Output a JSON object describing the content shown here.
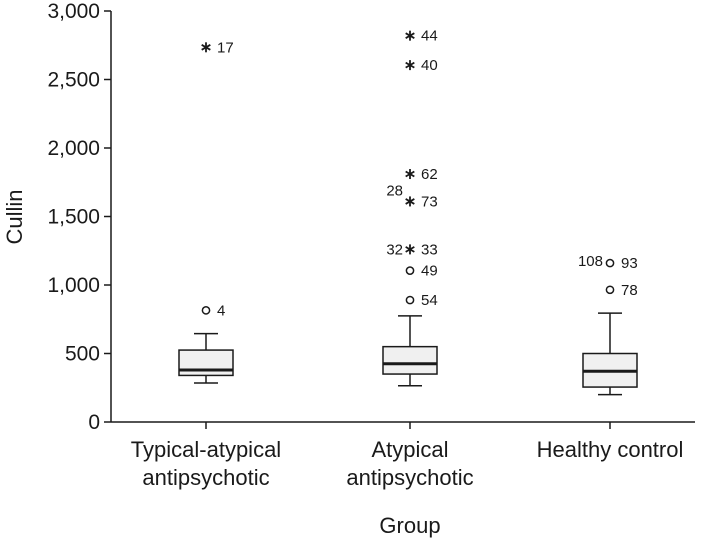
{
  "chart_data": {
    "type": "box",
    "xlabel": "Group",
    "ylabel": "Cullin",
    "ylim": [
      0,
      3000
    ],
    "yticks": [
      {
        "value": 0,
        "label": "0"
      },
      {
        "value": 500,
        "label": "500"
      },
      {
        "value": 1000,
        "label": "1,000"
      },
      {
        "value": 1500,
        "label": "1,500"
      },
      {
        "value": 2000,
        "label": "2,000"
      },
      {
        "value": 2500,
        "label": "2,500"
      },
      {
        "value": 3000,
        "label": "3,000"
      }
    ],
    "grid": false,
    "groups": [
      {
        "category": [
          "Typical-atypical",
          "antipsychotic"
        ],
        "whisker_low": 285,
        "q1": 340,
        "median": 380,
        "q3": 525,
        "whisker_high": 645,
        "outliers": [
          {
            "value": 815,
            "label": "4",
            "marker": "circle",
            "side": "right"
          },
          {
            "value": 2735,
            "label": "17",
            "marker": "star",
            "side": "right"
          }
        ]
      },
      {
        "category": [
          "Atypical",
          "antipsychotic"
        ],
        "whisker_low": 265,
        "q1": 350,
        "median": 425,
        "q3": 550,
        "whisker_high": 775,
        "outliers": [
          {
            "value": 890,
            "label": "54",
            "marker": "circle",
            "side": "right"
          },
          {
            "value": 1105,
            "label": "49",
            "marker": "circle",
            "side": "right"
          },
          {
            "value": 1260,
            "label": "33",
            "marker": "star",
            "side": "right"
          },
          {
            "value": 1260,
            "label": "32",
            "marker": "star",
            "side": "left"
          },
          {
            "value": 1610,
            "label": "73",
            "marker": "star",
            "side": "right"
          },
          {
            "value": 1690,
            "label": "28",
            "marker": "star",
            "side": "left"
          },
          {
            "value": 1810,
            "label": "62",
            "marker": "star",
            "side": "right"
          },
          {
            "value": 2605,
            "label": "40",
            "marker": "star",
            "side": "right"
          },
          {
            "value": 2820,
            "label": "44",
            "marker": "star",
            "side": "right"
          }
        ]
      },
      {
        "category": [
          "Healthy control"
        ],
        "whisker_low": 200,
        "q1": 255,
        "median": 370,
        "q3": 500,
        "whisker_high": 795,
        "outliers": [
          {
            "value": 965,
            "label": "78",
            "marker": "circle",
            "side": "right"
          },
          {
            "value": 1160,
            "label": "93",
            "marker": "circle",
            "side": "right"
          },
          {
            "value": 1175,
            "label": "108",
            "marker": "circle",
            "side": "left"
          }
        ]
      }
    ]
  },
  "colors": {
    "box_fill": "#f0f0f0",
    "stroke": "#1a1a1a"
  }
}
